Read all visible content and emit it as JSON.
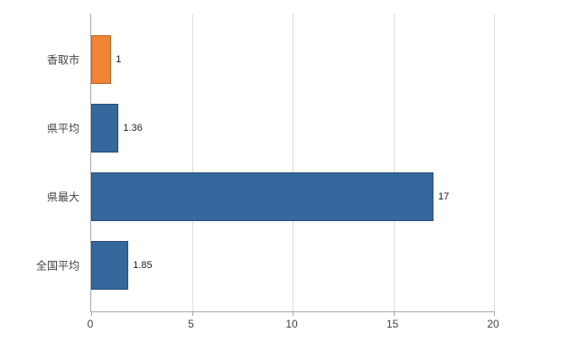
{
  "chart_data": {
    "type": "bar",
    "orientation": "horizontal",
    "categories": [
      "香取市",
      "県平均",
      "県最大",
      "全国平均"
    ],
    "values": [
      1,
      1.36,
      17,
      1.85
    ],
    "value_labels": [
      "1",
      "1.36",
      "17",
      "1.85"
    ],
    "bar_colors": [
      "#EE8434",
      "#35689D",
      "#35689D",
      "#35689D"
    ],
    "highlight_color": "#EE8434",
    "default_color": "#35689D",
    "xlim": [
      0,
      20
    ],
    "x_tick_values": [
      0,
      5,
      10,
      15,
      20
    ],
    "x_tick_labels": [
      "0",
      "5",
      "10",
      "15",
      "20"
    ],
    "grid": true,
    "legend_position": "none"
  }
}
